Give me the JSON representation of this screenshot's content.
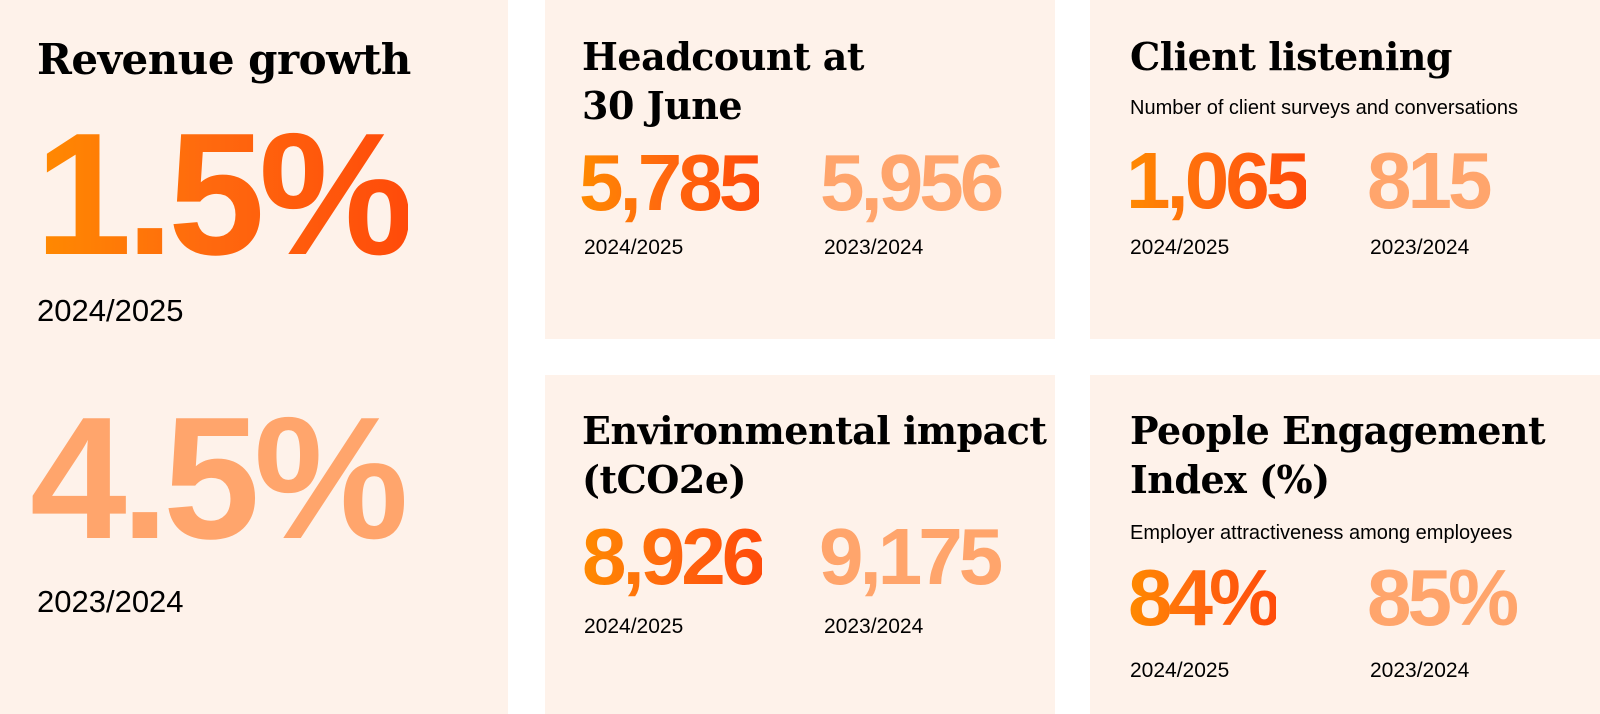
{
  "revenue": {
    "title": "Revenue growth",
    "current": {
      "value": "1.5%",
      "year": "2024/2025"
    },
    "previous": {
      "value": "4.5%",
      "year": "2023/2024"
    }
  },
  "headcount": {
    "title_line1": "Headcount at",
    "title_line2": "30 June",
    "current": {
      "value": "5,785",
      "year": "2024/2025"
    },
    "previous": {
      "value": "5,956",
      "year": "2023/2024"
    }
  },
  "client": {
    "title": "Client listening",
    "subtitle": "Number of client surveys and conversations",
    "current": {
      "value": "1,065",
      "year": "2024/2025"
    },
    "previous": {
      "value": "815",
      "year": "2023/2024"
    }
  },
  "environment": {
    "title_line1": "Environmental impact",
    "title_line2": "(tCO2e)",
    "current": {
      "value": "8,926",
      "year": "2024/2025"
    },
    "previous": {
      "value": "9,175",
      "year": "2023/2024"
    }
  },
  "engagement": {
    "title_line1": "People Engagement",
    "title_line2": "Index (%)",
    "subtitle": "Employer attractiveness among employees",
    "current": {
      "value": "84%",
      "year": "2024/2025"
    },
    "previous": {
      "value": "85%",
      "year": "2023/2024"
    }
  },
  "colors": {
    "card_bg": "#fef2ea",
    "current_gradient_start": "#ff8a00",
    "current_gradient_end": "#ff4b0a",
    "previous": "#ffa56c"
  }
}
